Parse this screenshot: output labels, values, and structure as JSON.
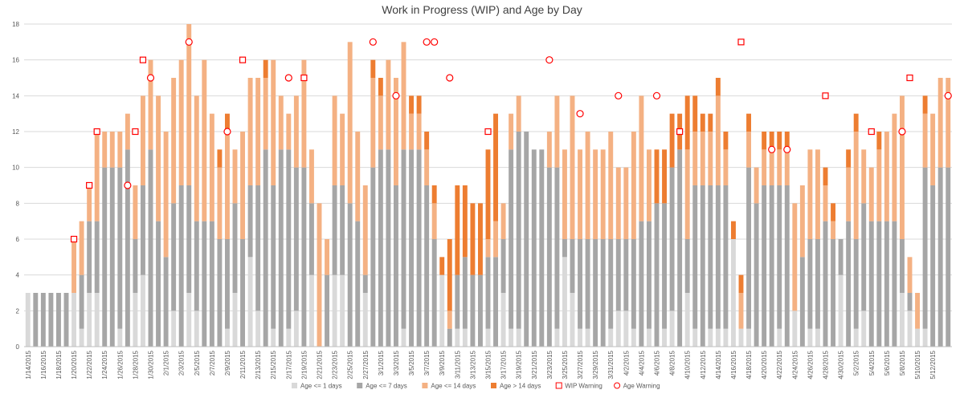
{
  "chart_data": {
    "type": "bar",
    "stacked": true,
    "title": "Work in Progress (WIP) and Age by Day",
    "xlabel": "",
    "ylabel": "",
    "ylim": [
      0,
      18
    ],
    "yticks": [
      0,
      2,
      4,
      6,
      8,
      10,
      12,
      14,
      16,
      18
    ],
    "grid": true,
    "legend_position": "bottom",
    "start_date": "2015-01-14",
    "day_count": 121,
    "x_tick_labels": [
      "1/14/2015",
      "1/16/2015",
      "1/18/2015",
      "1/20/2015",
      "1/22/2015",
      "1/24/2015",
      "1/26/2015",
      "1/28/2015",
      "1/30/2015",
      "2/1/2015",
      "2/3/2015",
      "2/5/2015",
      "2/7/2015",
      "2/9/2015",
      "2/11/2015",
      "2/13/2015",
      "2/15/2015",
      "2/17/2015",
      "2/19/2015",
      "2/21/2015",
      "2/23/2015",
      "2/25/2015",
      "2/27/2015",
      "3/1/2015",
      "3/3/2015",
      "3/5/2015",
      "3/7/2015",
      "3/9/2015",
      "3/11/2015",
      "3/13/2015",
      "3/15/2015",
      "3/17/2015",
      "3/19/2015",
      "3/21/2015",
      "3/23/2015",
      "3/25/2015",
      "3/27/2015",
      "3/29/2015",
      "3/31/2015",
      "4/2/2015",
      "4/4/2015",
      "4/6/2015",
      "4/8/2015",
      "4/10/2015",
      "4/12/2015",
      "4/14/2015",
      "4/16/2015",
      "4/18/2015",
      "4/20/2015",
      "4/22/2015",
      "4/24/2015",
      "4/26/2015",
      "4/28/2015",
      "4/30/2015",
      "5/2/2015",
      "5/4/2015",
      "5/6/2015",
      "5/8/2015",
      "5/10/2015",
      "5/12/2015"
    ],
    "series": [
      {
        "name": "Age <= 1 days",
        "color": "#d9d9d9",
        "values": [
          3,
          0,
          0,
          0,
          0,
          0,
          3,
          1,
          3,
          3,
          0,
          0,
          1,
          0,
          3,
          4,
          0,
          0,
          0,
          2,
          0,
          3,
          2,
          0,
          0,
          0,
          1,
          3,
          0,
          5,
          2,
          0,
          1,
          0,
          1,
          2,
          0,
          4,
          0,
          0,
          4,
          4,
          0,
          0,
          3,
          0,
          0,
          0,
          0,
          1,
          0,
          0,
          0,
          0,
          4,
          0,
          1,
          1,
          0,
          0,
          1,
          0,
          3,
          1,
          1,
          0,
          0,
          0,
          0,
          1,
          5,
          3,
          1,
          1,
          0,
          0,
          1,
          2,
          2,
          1,
          0,
          1,
          0,
          1,
          2,
          0,
          3,
          1,
          0,
          1,
          1,
          1,
          6,
          1,
          1,
          0,
          0,
          0,
          1,
          0,
          2,
          0,
          1,
          1,
          0,
          0,
          4,
          0,
          1,
          2,
          0,
          0,
          0,
          0,
          3,
          2,
          1,
          1,
          0,
          0,
          0
        ]
      },
      {
        "name": "Age <= 7 days",
        "color": "#a6a6a6",
        "values": [
          0,
          3,
          3,
          3,
          3,
          3,
          0,
          3,
          4,
          4,
          10,
          10,
          9,
          11,
          3,
          5,
          11,
          7,
          5,
          6,
          9,
          6,
          5,
          7,
          7,
          6,
          5,
          5,
          6,
          4,
          7,
          11,
          8,
          11,
          10,
          8,
          10,
          4,
          0,
          4,
          5,
          5,
          8,
          7,
          1,
          10,
          11,
          11,
          9,
          10,
          11,
          11,
          9,
          6,
          0,
          1,
          3,
          4,
          4,
          4,
          4,
          5,
          3,
          10,
          11,
          12,
          11,
          11,
          10,
          9,
          1,
          3,
          5,
          5,
          6,
          6,
          5,
          4,
          4,
          5,
          7,
          6,
          8,
          7,
          8,
          11,
          3,
          8,
          9,
          8,
          8,
          8,
          0,
          0,
          9,
          8,
          9,
          9,
          8,
          9,
          0,
          5,
          5,
          5,
          7,
          6,
          2,
          7,
          5,
          6,
          7,
          7,
          7,
          7,
          3,
          1,
          0,
          9,
          9,
          10,
          10
        ]
      },
      {
        "name": "Age <= 14 days",
        "color": "#f4b183",
        "values": [
          0,
          0,
          0,
          0,
          0,
          0,
          3,
          3,
          2,
          5,
          2,
          2,
          2,
          2,
          3,
          5,
          5,
          7,
          7,
          7,
          7,
          9,
          7,
          9,
          6,
          4,
          6,
          3,
          6,
          6,
          6,
          4,
          7,
          3,
          2,
          4,
          6,
          3,
          8,
          2,
          5,
          4,
          9,
          5,
          5,
          5,
          3,
          5,
          6,
          6,
          2,
          2,
          2,
          2,
          0,
          1,
          0,
          0,
          0,
          0,
          1,
          2,
          2,
          2,
          2,
          0,
          0,
          0,
          2,
          4,
          5,
          8,
          5,
          6,
          5,
          5,
          6,
          4,
          4,
          6,
          7,
          4,
          0,
          0,
          0,
          0,
          5,
          3,
          3,
          3,
          5,
          2,
          0,
          2,
          2,
          2,
          2,
          2,
          2,
          2,
          6,
          4,
          5,
          5,
          2,
          1,
          0,
          3,
          6,
          3,
          3,
          4,
          5,
          6,
          8,
          2,
          2,
          3,
          4,
          5,
          5
        ]
      },
      {
        "name": "Age > 14 days",
        "color": "#ed7d31",
        "values": [
          0,
          0,
          0,
          0,
          0,
          0,
          0,
          0,
          0,
          0,
          0,
          0,
          0,
          0,
          0,
          0,
          0,
          0,
          0,
          0,
          0,
          0,
          0,
          0,
          0,
          1,
          1,
          0,
          0,
          0,
          0,
          1,
          0,
          0,
          0,
          0,
          0,
          0,
          0,
          0,
          0,
          0,
          0,
          0,
          0,
          1,
          1,
          0,
          0,
          0,
          1,
          1,
          1,
          1,
          1,
          4,
          5,
          4,
          4,
          4,
          5,
          6,
          0,
          0,
          0,
          0,
          0,
          0,
          0,
          0,
          0,
          0,
          0,
          0,
          0,
          0,
          0,
          0,
          0,
          0,
          0,
          0,
          3,
          3,
          3,
          2,
          3,
          2,
          1,
          1,
          1,
          1,
          1,
          1,
          1,
          0,
          1,
          1,
          1,
          1,
          0,
          0,
          0,
          0,
          1,
          1,
          0,
          1,
          1,
          0,
          0,
          1,
          0,
          0,
          0,
          0,
          0,
          1,
          0,
          0,
          0
        ]
      }
    ],
    "markers": [
      {
        "name": "WIP Warning",
        "shape": "square",
        "color": "#ff0000",
        "points": [
          {
            "day": 6,
            "value": 6
          },
          {
            "day": 8,
            "value": 9
          },
          {
            "day": 9,
            "value": 12
          },
          {
            "day": 14,
            "value": 12
          },
          {
            "day": 15,
            "value": 16
          },
          {
            "day": 28,
            "value": 16
          },
          {
            "day": 36,
            "value": 15
          },
          {
            "day": 60,
            "value": 12
          },
          {
            "day": 85,
            "value": 12
          },
          {
            "day": 93,
            "value": 17
          },
          {
            "day": 104,
            "value": 14
          },
          {
            "day": 110,
            "value": 12
          },
          {
            "day": 115,
            "value": 15
          }
        ]
      },
      {
        "name": "Age Warning",
        "shape": "circle",
        "color": "#ff0000",
        "points": [
          {
            "day": 13,
            "value": 9
          },
          {
            "day": 16,
            "value": 15
          },
          {
            "day": 21,
            "value": 17
          },
          {
            "day": 26,
            "value": 12
          },
          {
            "day": 34,
            "value": 15
          },
          {
            "day": 45,
            "value": 17
          },
          {
            "day": 48,
            "value": 14
          },
          {
            "day": 52,
            "value": 17
          },
          {
            "day": 53,
            "value": 17
          },
          {
            "day": 55,
            "value": 15
          },
          {
            "day": 68,
            "value": 16
          },
          {
            "day": 72,
            "value": 13
          },
          {
            "day": 77,
            "value": 14
          },
          {
            "day": 82,
            "value": 14
          },
          {
            "day": 97,
            "value": 11
          },
          {
            "day": 99,
            "value": 11
          },
          {
            "day": 114,
            "value": 12
          },
          {
            "day": 120,
            "value": 14
          }
        ]
      }
    ]
  }
}
